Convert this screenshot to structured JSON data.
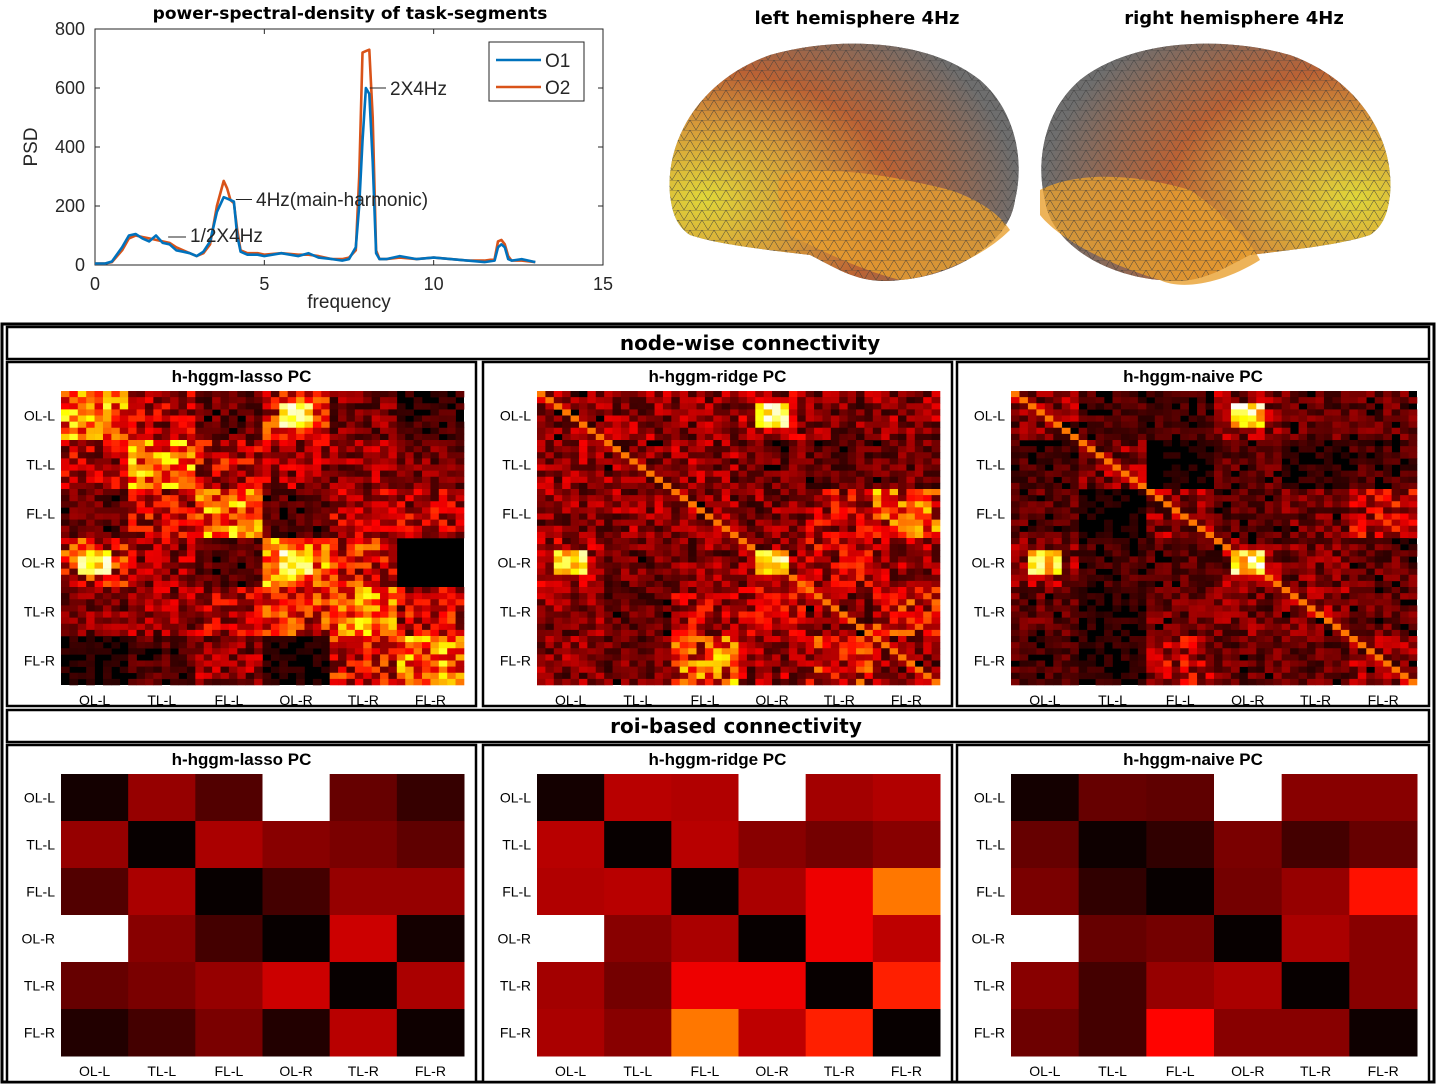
{
  "psd_chart": {
    "chart_data": {
      "type": "line",
      "title": "power-spectral-density of task-segments",
      "xlabel": "frequency",
      "ylabel": "PSD",
      "xlim": [
        0,
        15
      ],
      "ylim": [
        0,
        800
      ],
      "xticks": [
        "0",
        "5",
        "10",
        "15"
      ],
      "yticks": [
        "0",
        "200",
        "400",
        "600",
        "800"
      ],
      "grid": false,
      "legend": "top-right",
      "series": [
        {
          "name": "O1",
          "color": "#0072BD",
          "x": [
            0,
            0.3,
            0.5,
            0.8,
            1.0,
            1.2,
            1.4,
            1.6,
            1.8,
            2.0,
            2.2,
            2.4,
            2.6,
            2.8,
            3.0,
            3.2,
            3.4,
            3.6,
            3.8,
            3.9,
            4.0,
            4.1,
            4.2,
            4.3,
            4.5,
            4.8,
            5.0,
            5.5,
            6.0,
            6.3,
            6.6,
            7.0,
            7.3,
            7.5,
            7.7,
            7.8,
            7.9,
            8.0,
            8.1,
            8.2,
            8.3,
            8.4,
            8.6,
            9.0,
            9.5,
            10.0,
            10.5,
            11.0,
            11.5,
            11.8,
            11.9,
            12.0,
            12.1,
            12.2,
            12.3,
            12.6,
            13.0
          ],
          "y": [
            5,
            5,
            12,
            60,
            100,
            105,
            90,
            80,
            100,
            75,
            70,
            50,
            45,
            40,
            30,
            45,
            80,
            180,
            230,
            225,
            220,
            215,
            100,
            45,
            35,
            35,
            30,
            40,
            30,
            40,
            25,
            20,
            15,
            20,
            60,
            200,
            420,
            600,
            580,
            350,
            40,
            20,
            20,
            30,
            20,
            25,
            20,
            15,
            10,
            15,
            60,
            70,
            60,
            20,
            15,
            20,
            10
          ]
        },
        {
          "name": "O2",
          "color": "#D95319",
          "x": [
            0,
            0.3,
            0.5,
            0.8,
            1.0,
            1.2,
            1.4,
            1.6,
            1.8,
            2.0,
            2.2,
            2.4,
            2.6,
            2.8,
            3.0,
            3.2,
            3.4,
            3.6,
            3.8,
            3.9,
            4.0,
            4.1,
            4.2,
            4.3,
            4.5,
            4.8,
            5.0,
            5.5,
            6.0,
            6.3,
            6.6,
            7.0,
            7.3,
            7.5,
            7.7,
            7.8,
            7.9,
            8.0,
            8.1,
            8.2,
            8.3,
            8.4,
            8.6,
            9.0,
            9.5,
            10.0,
            10.5,
            11.0,
            11.5,
            11.8,
            11.9,
            12.0,
            12.1,
            12.2,
            12.3,
            12.6,
            13.0
          ],
          "y": [
            5,
            5,
            10,
            50,
            90,
            100,
            95,
            90,
            85,
            80,
            75,
            60,
            50,
            40,
            30,
            40,
            70,
            200,
            285,
            260,
            220,
            210,
            120,
            50,
            40,
            40,
            35,
            40,
            35,
            35,
            30,
            20,
            20,
            25,
            50,
            300,
            720,
            725,
            730,
            500,
            50,
            20,
            20,
            25,
            20,
            25,
            20,
            15,
            15,
            20,
            80,
            85,
            70,
            30,
            15,
            15,
            10
          ]
        }
      ],
      "annotations": [
        "2X4Hz",
        "4Hz(main-harmonic)",
        "1/2X4Hz"
      ]
    }
  },
  "brain_panels": {
    "left_title": "left hemisphere 4Hz",
    "right_title": "right hemisphere 4Hz"
  },
  "sections": {
    "node_title": "node-wise connectivity",
    "roi_title": "roi-based connectivity"
  },
  "axis_labels": [
    "OL-L",
    "TL-L",
    "FL-L",
    "OL-R",
    "TL-R",
    "FL-R"
  ],
  "colors": {
    "colormap": "hot",
    "brain_gray": "#6e6e6e",
    "brain_hot": "#e8a030"
  },
  "node_panels": [
    {
      "title": "h-hggm-lasso PC"
    },
    {
      "title": "h-hggm-ridge PC"
    },
    {
      "title": "h-hggm-naive PC"
    }
  ],
  "roi_panels": [
    {
      "title": "h-hggm-lasso PC"
    },
    {
      "title": "h-hggm-ridge PC"
    },
    {
      "title": "h-hggm-naive PC"
    }
  ],
  "chart_data": [
    {
      "type": "heatmap",
      "title": "h-hggm-lasso PC",
      "colormap": "hot",
      "rows": [
        "OL-L",
        "TL-L",
        "FL-L",
        "OL-R",
        "TL-R",
        "FL-R"
      ],
      "columns": [
        "OL-L",
        "TL-L",
        "FL-L",
        "OL-R",
        "TL-R",
        "FL-R"
      ],
      "values": [
        [
          0.03,
          0.22,
          0.12,
          1.0,
          0.15,
          0.08
        ],
        [
          0.22,
          0.01,
          0.25,
          0.2,
          0.18,
          0.14
        ],
        [
          0.12,
          0.25,
          0.01,
          0.1,
          0.22,
          0.22
        ],
        [
          1.0,
          0.2,
          0.1,
          0.01,
          0.3,
          0.03
        ],
        [
          0.15,
          0.18,
          0.22,
          0.3,
          0.01,
          0.25
        ],
        [
          0.05,
          0.1,
          0.18,
          0.05,
          0.27,
          0.02
        ]
      ]
    },
    {
      "type": "heatmap",
      "title": "h-hggm-ridge PC",
      "colormap": "hot",
      "rows": [
        "OL-L",
        "TL-L",
        "FL-L",
        "OL-R",
        "TL-R",
        "FL-R"
      ],
      "columns": [
        "OL-L",
        "TL-L",
        "FL-L",
        "OL-R",
        "TL-R",
        "FL-R"
      ],
      "values": [
        [
          0.03,
          0.27,
          0.26,
          1.0,
          0.24,
          0.26
        ],
        [
          0.27,
          0.01,
          0.27,
          0.2,
          0.17,
          0.2
        ],
        [
          0.26,
          0.27,
          0.01,
          0.25,
          0.35,
          0.55
        ],
        [
          1.0,
          0.2,
          0.25,
          0.01,
          0.35,
          0.28
        ],
        [
          0.24,
          0.17,
          0.35,
          0.35,
          0.01,
          0.42
        ],
        [
          0.25,
          0.2,
          0.55,
          0.28,
          0.42,
          0.01
        ]
      ]
    },
    {
      "type": "heatmap",
      "title": "h-hggm-naive PC",
      "colormap": "hot",
      "rows": [
        "OL-L",
        "TL-L",
        "FL-L",
        "OL-R",
        "TL-R",
        "FL-R"
      ],
      "columns": [
        "OL-L",
        "TL-L",
        "FL-L",
        "OL-R",
        "TL-R",
        "FL-R"
      ],
      "values": [
        [
          0.03,
          0.15,
          0.14,
          1.0,
          0.2,
          0.2
        ],
        [
          0.15,
          0.02,
          0.07,
          0.18,
          0.1,
          0.15
        ],
        [
          0.18,
          0.07,
          0.01,
          0.17,
          0.22,
          0.4
        ],
        [
          1.0,
          0.15,
          0.17,
          0.01,
          0.25,
          0.2
        ],
        [
          0.2,
          0.1,
          0.22,
          0.25,
          0.01,
          0.2
        ],
        [
          0.16,
          0.1,
          0.38,
          0.2,
          0.2,
          0.02
        ]
      ]
    }
  ]
}
